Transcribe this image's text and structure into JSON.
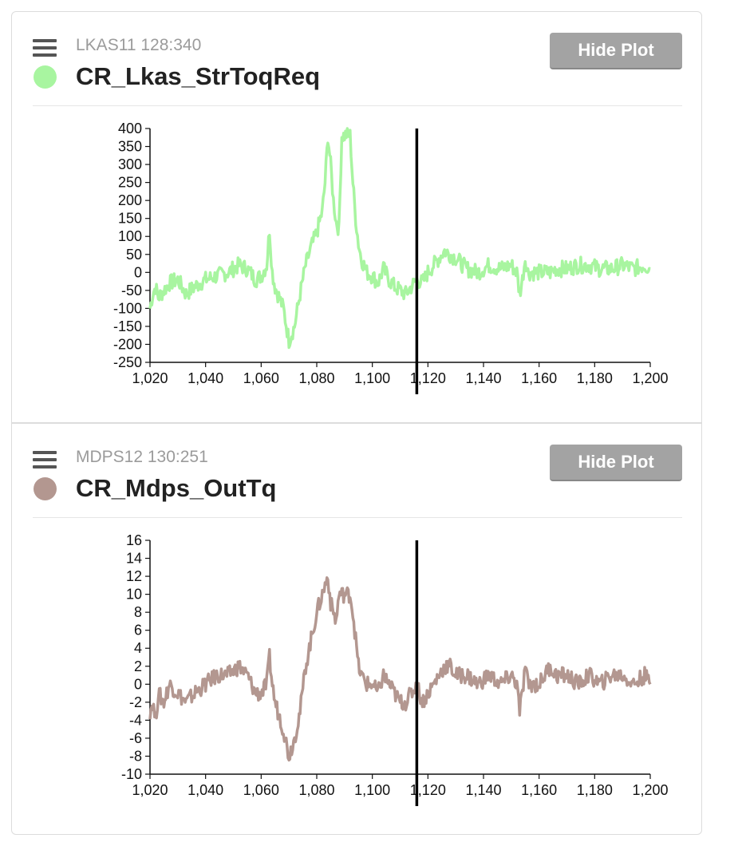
{
  "panels": [
    {
      "message": "LKAS11 128:340",
      "signal": "CR_Lkas_StrToqReq",
      "color": "#a8f5a0",
      "hide_label": "Hide Plot"
    },
    {
      "message": "MDPS12 130:251",
      "signal": "CR_Mdps_OutTq",
      "color": "#b39790",
      "hide_label": "Hide Plot"
    }
  ],
  "chart_data": [
    {
      "type": "line",
      "series": [
        {
          "color": "#a8f5a0",
          "x": [
            1020,
            1021,
            1022,
            1023,
            1025,
            1027,
            1030,
            1033,
            1036,
            1040,
            1044,
            1048,
            1052,
            1055,
            1058,
            1060,
            1062,
            1063,
            1064,
            1065,
            1066,
            1068,
            1070,
            1072,
            1074,
            1076,
            1078,
            1080,
            1082,
            1083,
            1084,
            1085,
            1086,
            1087,
            1088,
            1089,
            1090,
            1091,
            1092,
            1093,
            1094,
            1095,
            1096,
            1098,
            1100,
            1102,
            1104,
            1106,
            1108,
            1110,
            1112,
            1114,
            1116,
            1118,
            1120,
            1122,
            1124,
            1126,
            1128,
            1130,
            1134,
            1138,
            1142,
            1146,
            1150,
            1152,
            1153,
            1154,
            1155,
            1156,
            1158,
            1160,
            1162,
            1164,
            1166,
            1170,
            1174,
            1178,
            1182,
            1186,
            1190,
            1194,
            1198,
            1200
          ],
          "y": [
            -100,
            -60,
            -40,
            -70,
            -50,
            -30,
            -20,
            -60,
            -40,
            -20,
            -10,
            0,
            20,
            10,
            -20,
            -10,
            20,
            120,
            0,
            -40,
            -60,
            -100,
            -190,
            -150,
            -60,
            20,
            70,
            110,
            170,
            250,
            380,
            300,
            200,
            140,
            120,
            380,
            380,
            385,
            380,
            250,
            150,
            80,
            40,
            0,
            -10,
            -30,
            10,
            -20,
            -40,
            -50,
            -60,
            -40,
            -20,
            -30,
            0,
            20,
            40,
            60,
            50,
            40,
            10,
            0,
            20,
            10,
            20,
            0,
            -60,
            -20,
            40,
            0,
            0,
            0,
            0,
            0,
            10,
            10,
            20,
            20,
            10,
            10,
            20,
            10,
            20,
            10
          ]
        }
      ],
      "x_ticks": [
        "1,020",
        "1,040",
        "1,060",
        "1,080",
        "1,100",
        "1,120",
        "1,140",
        "1,160",
        "1,180",
        "1,200"
      ],
      "y_ticks": [
        "400",
        "350",
        "300",
        "250",
        "200",
        "150",
        "100",
        "50",
        "0",
        "-50",
        "-100",
        "-150",
        "-200",
        "-250"
      ],
      "xlim": [
        1020,
        1200
      ],
      "ylim": [
        -250,
        400
      ],
      "cursor_x": 1116,
      "grid": false
    },
    {
      "type": "line",
      "series": [
        {
          "color": "#b39790",
          "x": [
            1020,
            1021,
            1022,
            1023,
            1025,
            1027,
            1030,
            1033,
            1036,
            1040,
            1044,
            1048,
            1052,
            1055,
            1058,
            1060,
            1062,
            1063,
            1064,
            1065,
            1066,
            1068,
            1070,
            1072,
            1074,
            1076,
            1078,
            1080,
            1082,
            1083,
            1084,
            1085,
            1086,
            1087,
            1088,
            1089,
            1090,
            1091,
            1092,
            1093,
            1094,
            1095,
            1096,
            1098,
            1100,
            1102,
            1104,
            1106,
            1108,
            1110,
            1112,
            1114,
            1116,
            1118,
            1120,
            1122,
            1124,
            1126,
            1128,
            1130,
            1134,
            1138,
            1142,
            1146,
            1150,
            1152,
            1153,
            1154,
            1155,
            1156,
            1158,
            1160,
            1162,
            1164,
            1166,
            1170,
            1174,
            1178,
            1182,
            1186,
            1190,
            1194,
            1198,
            1200
          ],
          "y": [
            -3,
            -2,
            -4,
            -1,
            -2,
            0,
            -1,
            -2,
            -1,
            0,
            1,
            1,
            2,
            1,
            -1,
            -1,
            0,
            3,
            0,
            -2,
            -3,
            -5,
            -8,
            -6,
            -3,
            2,
            5,
            8,
            10,
            11,
            12,
            9,
            8,
            7,
            10,
            10,
            10,
            10,
            10,
            8,
            5,
            2,
            1,
            0,
            0,
            -1,
            1,
            0,
            -1,
            -2,
            -2,
            -1,
            0,
            -2,
            -1,
            0,
            1,
            2,
            2,
            1,
            1,
            0,
            1,
            0,
            1,
            0,
            -3,
            -1,
            2,
            0,
            0,
            0,
            1,
            2,
            1,
            1,
            0,
            1,
            0,
            1,
            1,
            0,
            1,
            0
          ]
        }
      ],
      "x_ticks": [
        "1,020",
        "1,040",
        "1,060",
        "1,080",
        "1,100",
        "1,120",
        "1,140",
        "1,160",
        "1,180",
        "1,200"
      ],
      "y_ticks": [
        "16",
        "14",
        "12",
        "10",
        "8",
        "6",
        "4",
        "2",
        "0",
        "-2",
        "-4",
        "-6",
        "-8",
        "-10"
      ],
      "xlim": [
        1020,
        1200
      ],
      "ylim": [
        -10,
        16
      ],
      "cursor_x": 1116,
      "grid": false
    }
  ]
}
